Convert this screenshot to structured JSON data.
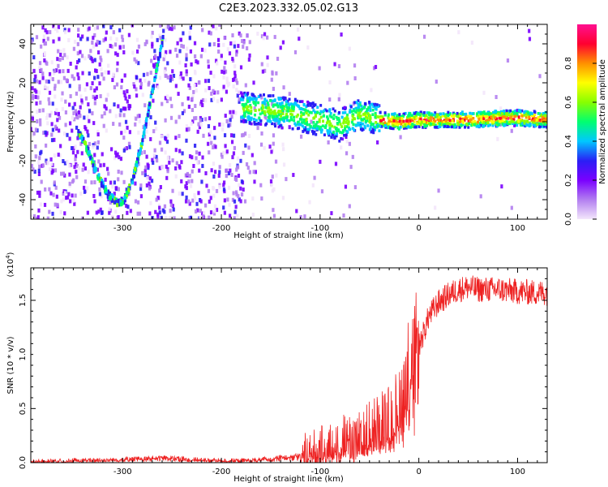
{
  "title": "C2E3.2023.332.05.02.G13",
  "chart_data": [
    {
      "type": "heatmap",
      "xlabel": "Height of straight line (km)",
      "ylabel": "Frequency (Hz)",
      "xlim": [
        -393,
        130
      ],
      "ylim": [
        -50,
        50
      ],
      "x_ticks": [
        -300,
        -200,
        -100,
        0,
        100
      ],
      "y_ticks": [
        -40,
        -20,
        0,
        20,
        40
      ],
      "colorbar": {
        "label": "Normalized spectral amplitude",
        "range": [
          0.0,
          1.0
        ],
        "ticks": [
          "0.0",
          "0.2",
          "0.4",
          "0.6",
          "0.8"
        ],
        "stops": [
          "#f3e6fb",
          "#b27ef0",
          "#7a00ff",
          "#2a1ff5",
          "#00c8ff",
          "#00ff70",
          "#88ff00",
          "#ffff00",
          "#ff9000",
          "#ff0030",
          "#ff1090"
        ]
      },
      "ridge": [
        {
          "x": -345,
          "y": -5
        },
        {
          "x": -335,
          "y": -15
        },
        {
          "x": -325,
          "y": -28
        },
        {
          "x": -315,
          "y": -37
        },
        {
          "x": -305,
          "y": -42
        },
        {
          "x": -298,
          "y": -40
        },
        {
          "x": -290,
          "y": -30
        },
        {
          "x": -280,
          "y": -10
        },
        {
          "x": -272,
          "y": 10
        },
        {
          "x": -265,
          "y": 28
        },
        {
          "x": -258,
          "y": 45
        }
      ],
      "band": [
        {
          "x": -180,
          "y": 7
        },
        {
          "x": -150,
          "y": 6
        },
        {
          "x": -120,
          "y": 3
        },
        {
          "x": -100,
          "y": 1
        },
        {
          "x": -80,
          "y": -2
        },
        {
          "x": -60,
          "y": 4
        },
        {
          "x": -40,
          "y": 1
        },
        {
          "x": -20,
          "y": 0
        },
        {
          "x": 0,
          "y": 1
        },
        {
          "x": 50,
          "y": 1
        },
        {
          "x": 100,
          "y": 2
        },
        {
          "x": 130,
          "y": 1
        }
      ]
    },
    {
      "type": "line",
      "xlabel": "Height of straight line (km)",
      "ylabel": "SNR (10 * v/v)",
      "multiplier": "(x10",
      "multiplier_exp": "4",
      "multiplier_close": ")",
      "xlim": [
        -393,
        130
      ],
      "ylim": [
        0,
        1.8
      ],
      "x_ticks": [
        -300,
        -200,
        -100,
        0,
        100
      ],
      "y_ticks": [
        "0.0",
        "0.5",
        "1.0",
        "1.5"
      ],
      "color": "#ee2222",
      "series": [
        {
          "x": [
            -393,
            -350,
            -300,
            -260,
            -230,
            -200,
            -170,
            -150,
            -130,
            -115,
            -100,
            -90,
            -80,
            -70,
            -60,
            -50,
            -40,
            -30,
            -20,
            -15,
            -10,
            -5,
            0,
            5,
            10,
            20,
            30,
            40,
            50,
            60,
            80,
            100,
            120,
            130
          ],
          "y": [
            0.01,
            0.02,
            0.03,
            0.05,
            0.03,
            0.02,
            0.02,
            0.04,
            0.06,
            0.08,
            0.12,
            0.15,
            0.2,
            0.22,
            0.25,
            0.3,
            0.36,
            0.4,
            0.55,
            0.7,
            0.9,
            1.0,
            1.08,
            1.2,
            1.35,
            1.48,
            1.55,
            1.6,
            1.62,
            1.6,
            1.6,
            1.58,
            1.57,
            1.57
          ]
        }
      ]
    }
  ]
}
